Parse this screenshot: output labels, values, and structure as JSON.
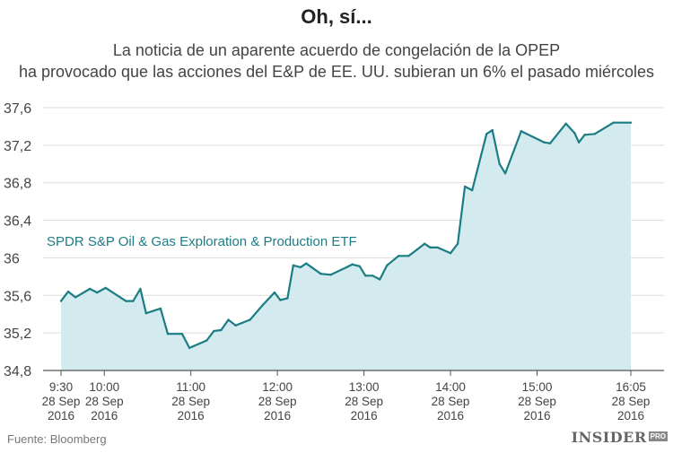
{
  "header": {
    "title": "Oh, sí...",
    "subtitle_lines": [
      "La noticia de un aparente acuerdo de congelación de la OPEP",
      "ha provocado que las acciones del E&P de EE. UU. subieran un 6% el pasado miércoles"
    ]
  },
  "footer": {
    "source": "Fuente: Bloomberg",
    "logo": "INSIDER",
    "logo_badge": "PRO"
  },
  "colors": {
    "line": "#1b7d84",
    "area": "#d3ebef",
    "grid": "#dddddd",
    "axis": "#555555",
    "series_label": "#1b7d84"
  },
  "chart_data": {
    "type": "area",
    "title": "",
    "xlabel": "",
    "ylabel": "",
    "ylim": [
      34.8,
      37.6
    ],
    "yticks": [
      34.8,
      35.2,
      35.6,
      36,
      36.4,
      36.8,
      37.2,
      37.6
    ],
    "ytick_labels": [
      "34,8",
      "35,2",
      "35,6",
      "36",
      "36,4",
      "36,8",
      "37,2",
      "37,6"
    ],
    "xlim": [
      "9:30",
      "16:05"
    ],
    "x_ticks": [
      {
        "time": "9:30",
        "lines": [
          "9:30",
          "28 Sep",
          "2016"
        ]
      },
      {
        "time": "10:00",
        "lines": [
          "10:00",
          "28 Sep",
          "2016"
        ]
      },
      {
        "time": "11:00",
        "lines": [
          "11:00",
          "28 Sep",
          "2016"
        ]
      },
      {
        "time": "12:00",
        "lines": [
          "12:00",
          "28 Sep",
          "2016"
        ]
      },
      {
        "time": "13:00",
        "lines": [
          "13:00",
          "28 Sep",
          "2016"
        ]
      },
      {
        "time": "14:00",
        "lines": [
          "14:00",
          "28 Sep",
          "2016"
        ]
      },
      {
        "time": "15:00",
        "lines": [
          "15:00",
          "28 Sep",
          "2016"
        ]
      },
      {
        "time": "16:05",
        "lines": [
          "16:05",
          "28 Sep",
          "2016"
        ]
      }
    ],
    "grid": true,
    "series": [
      {
        "name": "SPDR S&P Oil & Gas Exploration & Production ETF",
        "points": [
          [
            "9:30",
            35.54
          ],
          [
            "9:35",
            35.64
          ],
          [
            "9:40",
            35.58
          ],
          [
            "9:50",
            35.67
          ],
          [
            "9:55",
            35.63
          ],
          [
            "10:01",
            35.68
          ],
          [
            "10:15",
            35.54
          ],
          [
            "10:20",
            35.54
          ],
          [
            "10:25",
            35.67
          ],
          [
            "10:29",
            35.41
          ],
          [
            "10:39",
            35.46
          ],
          [
            "10:44",
            35.19
          ],
          [
            "10:54",
            35.19
          ],
          [
            "10:59",
            35.04
          ],
          [
            "11:11",
            35.12
          ],
          [
            "11:16",
            35.22
          ],
          [
            "11:21",
            35.23
          ],
          [
            "11:26",
            35.34
          ],
          [
            "11:31",
            35.28
          ],
          [
            "11:41",
            35.34
          ],
          [
            "11:50",
            35.5
          ],
          [
            "11:58",
            35.63
          ],
          [
            "12:02",
            35.55
          ],
          [
            "12:07",
            35.57
          ],
          [
            "12:11",
            35.92
          ],
          [
            "12:16",
            35.9
          ],
          [
            "12:20",
            35.94
          ],
          [
            "12:30",
            35.83
          ],
          [
            "12:37",
            35.82
          ],
          [
            "12:48",
            35.9
          ],
          [
            "12:52",
            35.93
          ],
          [
            "12:57",
            35.91
          ],
          [
            "13:01",
            35.81
          ],
          [
            "13:06",
            35.81
          ],
          [
            "13:11",
            35.77
          ],
          [
            "13:16",
            35.92
          ],
          [
            "13:24",
            36.02
          ],
          [
            "13:31",
            36.02
          ],
          [
            "13:37",
            36.09
          ],
          [
            "13:42",
            36.15
          ],
          [
            "13:46",
            36.11
          ],
          [
            "13:51",
            36.11
          ],
          [
            "14:00",
            36.05
          ],
          [
            "14:05",
            36.15
          ],
          [
            "14:10",
            36.76
          ],
          [
            "14:15",
            36.72
          ],
          [
            "14:25",
            37.32
          ],
          [
            "14:29",
            37.36
          ],
          [
            "14:34",
            37.0
          ],
          [
            "14:38",
            36.9
          ],
          [
            "14:49",
            37.35
          ],
          [
            "15:05",
            37.23
          ],
          [
            "15:09",
            37.22
          ],
          [
            "15:20",
            37.43
          ],
          [
            "15:26",
            37.33
          ],
          [
            "15:29",
            37.23
          ],
          [
            "15:33",
            37.31
          ],
          [
            "15:40",
            37.32
          ],
          [
            "15:53",
            37.44
          ],
          [
            "16:05",
            37.44
          ]
        ]
      }
    ]
  }
}
